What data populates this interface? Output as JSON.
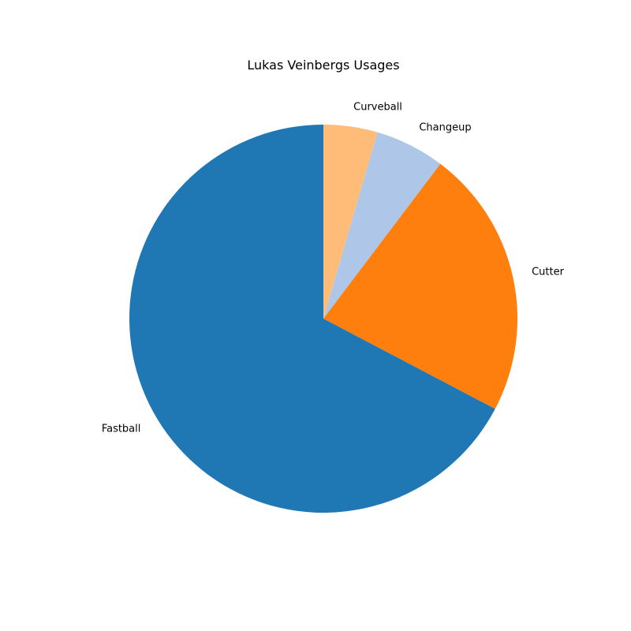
{
  "chart_data": {
    "type": "pie",
    "title": "Lukas Veinbergs Usages",
    "start_angle_deg": 90,
    "direction": "clockwise",
    "slices": [
      {
        "label": "Curveball",
        "value": 4.5,
        "color": "#ffbb78"
      },
      {
        "label": "Changeup",
        "value": 5.8,
        "color": "#aec7e8"
      },
      {
        "label": "Cutter",
        "value": 22.4,
        "color": "#ff7f0e"
      },
      {
        "label": "Fastball",
        "value": 67.3,
        "color": "#1f77b4"
      }
    ]
  }
}
